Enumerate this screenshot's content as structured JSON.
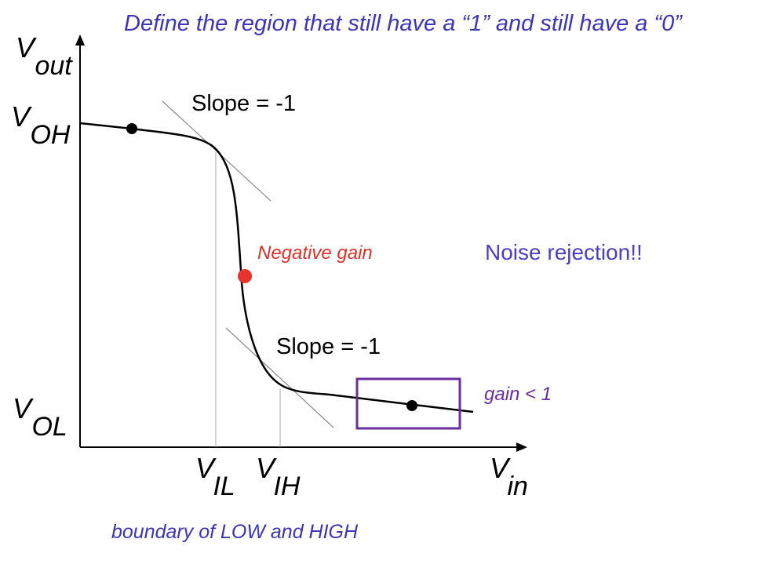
{
  "title": "Define the region that still have a “1” and still have a “0”",
  "footer": "boundary of LOW and HIGH",
  "noise_label": "Noise rejection!!",
  "negative_gain_label": "Negative gain",
  "gain_label": "gain < 1",
  "slope_upper": "Slope = -1",
  "slope_lower": "Slope = -1",
  "axis": {
    "y": {
      "symbol": "V",
      "subscript": "out"
    },
    "x": {
      "symbol": "V",
      "subscript": "in"
    }
  },
  "levels": {
    "voh": {
      "symbol": "V",
      "subscript": "OH"
    },
    "vol": {
      "symbol": "V",
      "subscript": "OL"
    },
    "vil": {
      "symbol": "V",
      "subscript": "IL"
    },
    "vih": {
      "symbol": "V",
      "subscript": "IH"
    }
  },
  "colors": {
    "heading": "#3b35b8",
    "noise": "#4b3fc0",
    "negative_gain": "#e0302a",
    "gain": "#6a2f9a",
    "box": "#6a2f9a",
    "red_point": "#e8322c",
    "curve": "#000000",
    "guides": "#a9a9a9"
  }
}
